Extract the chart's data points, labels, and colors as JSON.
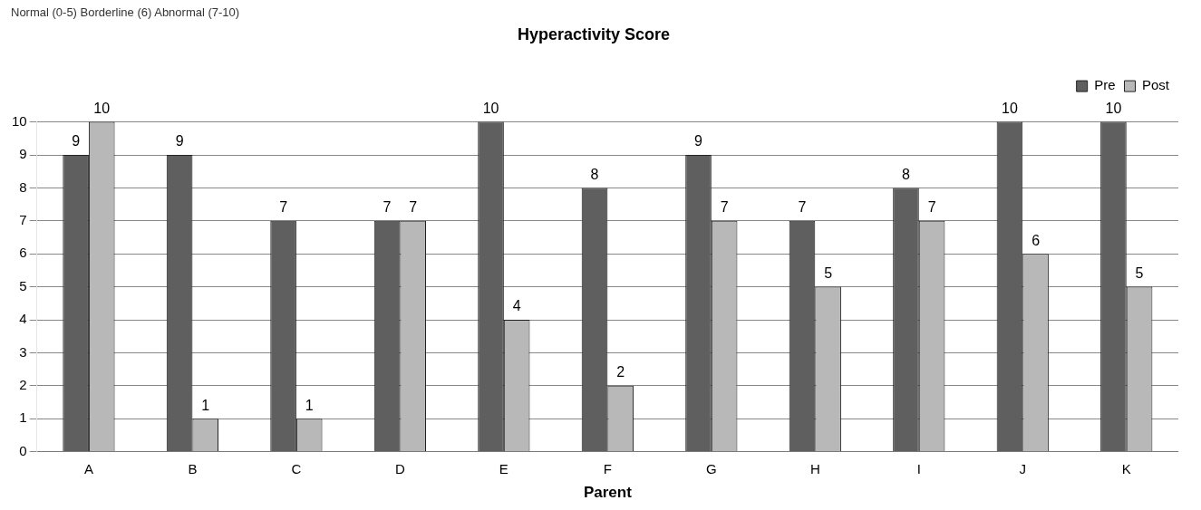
{
  "chart_data": {
    "type": "bar",
    "title": "Hyperactivity Score",
    "xlabel": "Parent",
    "annotations": [
      "Normal (0-5)  Borderline (6)  Abnormal (7-10)"
    ],
    "categories": [
      "A",
      "B",
      "C",
      "D",
      "E",
      "F",
      "G",
      "H",
      "I",
      "J",
      "K"
    ],
    "series": [
      {
        "name": "Pre",
        "color": "#5f5f5f",
        "values": [
          9,
          9,
          7,
          7,
          10,
          8,
          9,
          7,
          8,
          10,
          10
        ]
      },
      {
        "name": "Post",
        "color": "#b8b8b8",
        "values": [
          10,
          1,
          1,
          7,
          4,
          2,
          7,
          5,
          7,
          6,
          5
        ]
      }
    ],
    "ylim": [
      0,
      10
    ],
    "yticks": [
      0,
      1,
      2,
      3,
      4,
      5,
      6,
      7,
      8,
      9,
      10
    ],
    "grid": "y",
    "legend": "top right",
    "data_labels": true
  }
}
